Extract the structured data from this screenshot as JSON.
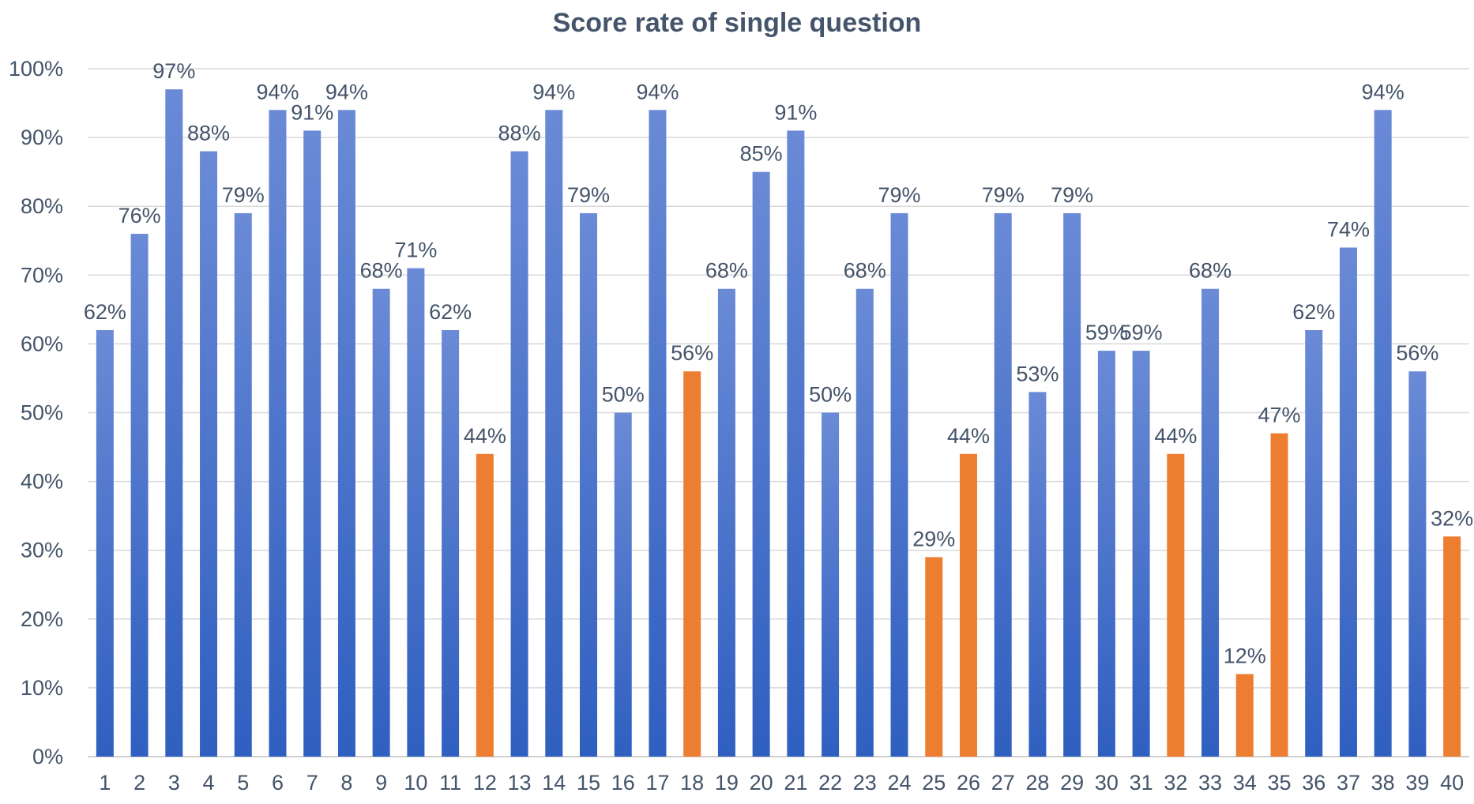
{
  "chart_data": {
    "type": "bar",
    "title": "Score rate of single question",
    "xlabel": "",
    "ylabel": "",
    "categories": [
      "1",
      "2",
      "3",
      "4",
      "5",
      "6",
      "7",
      "8",
      "9",
      "10",
      "11",
      "12",
      "13",
      "14",
      "15",
      "16",
      "17",
      "18",
      "19",
      "20",
      "21",
      "22",
      "23",
      "24",
      "25",
      "26",
      "27",
      "28",
      "29",
      "30",
      "31",
      "32",
      "33",
      "34",
      "35",
      "36",
      "37",
      "38",
      "39",
      "40"
    ],
    "values": [
      62,
      76,
      97,
      88,
      79,
      94,
      91,
      94,
      68,
      71,
      62,
      44,
      88,
      94,
      79,
      50,
      94,
      56,
      68,
      85,
      91,
      50,
      68,
      79,
      29,
      44,
      79,
      53,
      79,
      59,
      59,
      44,
      68,
      12,
      47,
      62,
      74,
      94,
      56,
      32
    ],
    "data_labels": [
      "62%",
      "76%",
      "97%",
      "88%",
      "79%",
      "94%",
      "91%",
      "94%",
      "68%",
      "71%",
      "62%",
      "44%",
      "88%",
      "94%",
      "79%",
      "50%",
      "94%",
      "56%",
      "68%",
      "85%",
      "91%",
      "50%",
      "68%",
      "79%",
      "29%",
      "44%",
      "79%",
      "53%",
      "79%",
      "59%",
      "59%",
      "44%",
      "68%",
      "12%",
      "47%",
      "62%",
      "74%",
      "94%",
      "56%",
      "32%"
    ],
    "highlighted_categories": [
      "12",
      "18",
      "25",
      "26",
      "32",
      "34",
      "35",
      "40"
    ],
    "ylim": [
      0,
      100
    ],
    "yticks": [
      0,
      10,
      20,
      30,
      40,
      50,
      60,
      70,
      80,
      90,
      100
    ],
    "ytick_labels": [
      "0%",
      "10%",
      "20%",
      "30%",
      "40%",
      "50%",
      "60%",
      "70%",
      "80%",
      "90%",
      "100%"
    ],
    "grid": true,
    "legend": "none",
    "colors": {
      "bar_top": "#6a8ad6",
      "bar_bottom": "#2f5fc0",
      "highlight": "#ed7d31",
      "text": "#44546a",
      "grid": "#d9d9d9"
    }
  }
}
